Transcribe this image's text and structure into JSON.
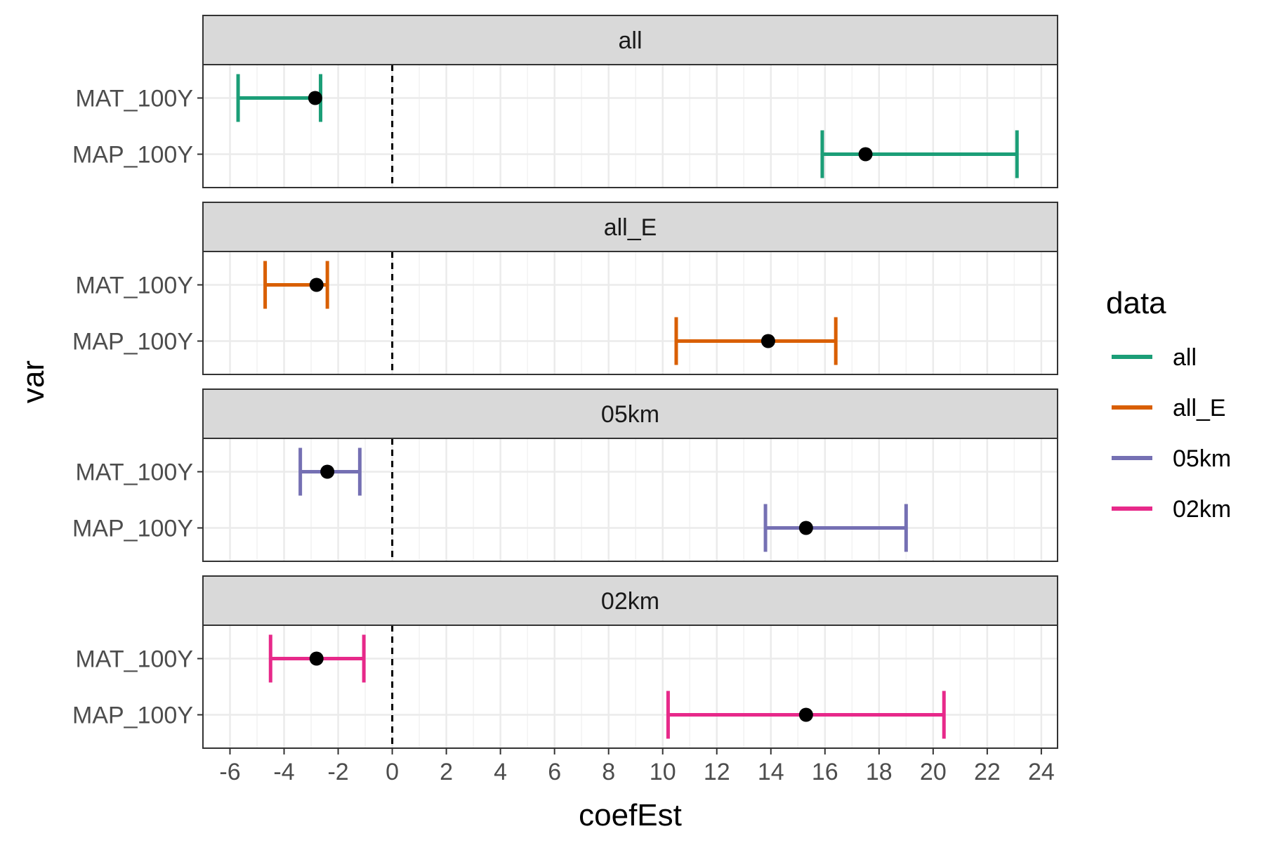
{
  "chart_data": {
    "type": "errorbar",
    "xlabel": "coefEst",
    "ylabel": "var",
    "xlim": [
      -7,
      24.6
    ],
    "x_ticks": [
      -6,
      -4,
      -2,
      0,
      2,
      4,
      6,
      8,
      10,
      12,
      14,
      16,
      18,
      20,
      22,
      24
    ],
    "x_tick_labels": [
      "-6",
      "-4",
      "-2",
      "0",
      "2",
      "4",
      "6",
      "8",
      "10",
      "12",
      "14",
      "16",
      "18",
      "20",
      "22",
      "24"
    ],
    "reference_line_x": 0,
    "categories": [
      "MAT_100Y",
      "MAP_100Y"
    ],
    "grid": true,
    "legend": {
      "title": "data",
      "position": "right",
      "items": [
        {
          "label": "all",
          "color": "#1b9e77"
        },
        {
          "label": "all_E",
          "color": "#d95f02"
        },
        {
          "label": "05km",
          "color": "#7570b3"
        },
        {
          "label": "02km",
          "color": "#e7298a"
        }
      ]
    },
    "panels": [
      {
        "strip": "all",
        "color": "#1b9e77",
        "rows": [
          {
            "var": "MAT_100Y",
            "est": -2.85,
            "lo": -5.7,
            "hi": -2.65
          },
          {
            "var": "MAP_100Y",
            "est": 17.5,
            "lo": 15.9,
            "hi": 23.1
          }
        ]
      },
      {
        "strip": "all_E",
        "color": "#d95f02",
        "rows": [
          {
            "var": "MAT_100Y",
            "est": -2.8,
            "lo": -4.7,
            "hi": -2.4
          },
          {
            "var": "MAP_100Y",
            "est": 13.9,
            "lo": 10.5,
            "hi": 16.4
          }
        ]
      },
      {
        "strip": "05km",
        "color": "#7570b3",
        "rows": [
          {
            "var": "MAT_100Y",
            "est": -2.4,
            "lo": -3.4,
            "hi": -1.2
          },
          {
            "var": "MAP_100Y",
            "est": 15.3,
            "lo": 13.8,
            "hi": 19.0
          }
        ]
      },
      {
        "strip": "02km",
        "color": "#e7298a",
        "rows": [
          {
            "var": "MAT_100Y",
            "est": -2.8,
            "lo": -4.5,
            "hi": -1.05
          },
          {
            "var": "MAP_100Y",
            "est": 15.3,
            "lo": 10.2,
            "hi": 20.4
          }
        ]
      }
    ]
  }
}
